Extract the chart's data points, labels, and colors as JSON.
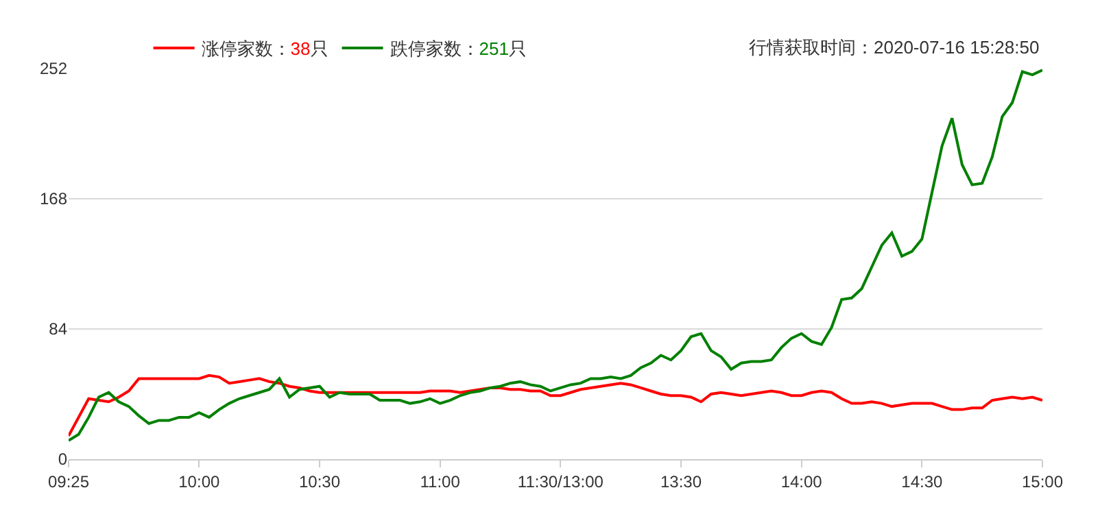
{
  "chart_data": {
    "type": "line",
    "annotations": [
      "行情获取时间：2020-07-16 15:28:50"
    ],
    "categories": [
      "09:25",
      null,
      null,
      null,
      null,
      null,
      null,
      null,
      null,
      null,
      null,
      null,
      null,
      "10:00",
      null,
      null,
      null,
      null,
      null,
      null,
      null,
      null,
      null,
      null,
      null,
      "10:30",
      null,
      null,
      null,
      null,
      null,
      null,
      null,
      null,
      null,
      null,
      null,
      "11:00",
      null,
      null,
      null,
      null,
      null,
      null,
      null,
      null,
      null,
      null,
      null,
      "11:30/13:00",
      null,
      null,
      null,
      null,
      null,
      null,
      null,
      null,
      null,
      null,
      null,
      "13:30",
      null,
      null,
      null,
      null,
      null,
      null,
      null,
      null,
      null,
      null,
      null,
      "14:00",
      null,
      null,
      null,
      null,
      null,
      null,
      null,
      null,
      null,
      null,
      null,
      "14:30",
      null,
      null,
      null,
      null,
      null,
      null,
      null,
      null,
      null,
      null,
      null,
      "15:00"
    ],
    "ylim": [
      0,
      252
    ],
    "yticks": [
      0,
      84,
      168,
      252
    ],
    "grid": "y",
    "legend": "top",
    "marker": "none",
    "line_style": "solid",
    "series": [
      {
        "name": "涨停家数：38只",
        "color": "#ff0000",
        "values": [
          15,
          27,
          39,
          38,
          37,
          40,
          44,
          52,
          52,
          52,
          52,
          52,
          52,
          52,
          54,
          53,
          49,
          50,
          51,
          52,
          50,
          49,
          47,
          46,
          44,
          43,
          43,
          43,
          43,
          43,
          43,
          43,
          43,
          43,
          43,
          43,
          44,
          44,
          44,
          43,
          44,
          45,
          46,
          46,
          45,
          45,
          44,
          44,
          41,
          41,
          43,
          45,
          46,
          47,
          48,
          49,
          48,
          46,
          44,
          42,
          41,
          41,
          40,
          37,
          42,
          43,
          42,
          41,
          42,
          43,
          44,
          43,
          41,
          41,
          43,
          44,
          43,
          39,
          36,
          36,
          37,
          36,
          34,
          35,
          36,
          36,
          36,
          34,
          32,
          32,
          33,
          33,
          38,
          39,
          40,
          39,
          40,
          38
        ]
      },
      {
        "name": "跌停家数：251只",
        "color": "#008000",
        "values": [
          12,
          16,
          27,
          40,
          43,
          37,
          34,
          28,
          23,
          25,
          25,
          27,
          27,
          30,
          27,
          32,
          36,
          39,
          41,
          43,
          45,
          52,
          40,
          45,
          46,
          47,
          40,
          43,
          42,
          42,
          42,
          38,
          38,
          38,
          36,
          37,
          39,
          36,
          38,
          41,
          43,
          44,
          46,
          47,
          49,
          50,
          48,
          47,
          44,
          46,
          48,
          49,
          52,
          52,
          53,
          52,
          54,
          59,
          62,
          67,
          64,
          70,
          79,
          81,
          70,
          66,
          58,
          62,
          63,
          63,
          64,
          72,
          78,
          81,
          76,
          74,
          85,
          103,
          104,
          110,
          124,
          138,
          146,
          131,
          134,
          142,
          172,
          202,
          220,
          190,
          177,
          178,
          195,
          221,
          230,
          250,
          248,
          251
        ]
      }
    ]
  }
}
